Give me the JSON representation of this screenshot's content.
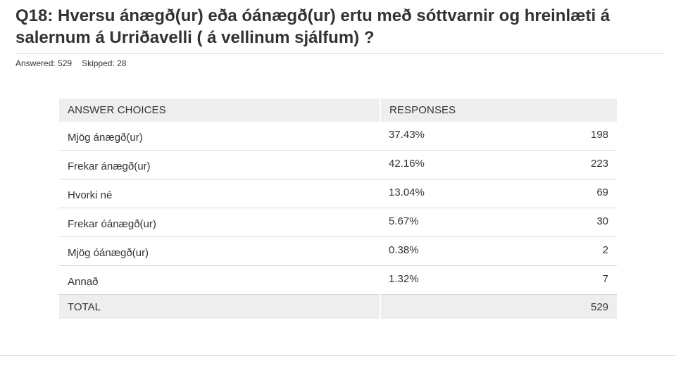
{
  "question": {
    "title": "Q18: Hversu ánægð(ur) eða óánægð(ur) ertu með sóttvarnir og hreinlæti á salernum á Urriðavelli ( á vellinum sjálfum) ?"
  },
  "stats": {
    "answered": "Answered: 529",
    "skipped": "Skipped: 28"
  },
  "table": {
    "headers": {
      "choices": "ANSWER CHOICES",
      "responses": "RESPONSES"
    },
    "rows": [
      {
        "choice": "Mjög ánægð(ur)",
        "percent": "37.43%",
        "count": "198"
      },
      {
        "choice": "Frekar ánægð(ur)",
        "percent": "42.16%",
        "count": "223"
      },
      {
        "choice": "Hvorki né",
        "percent": "13.04%",
        "count": "69"
      },
      {
        "choice": "Frekar óánægð(ur)",
        "percent": "5.67%",
        "count": "30"
      },
      {
        "choice": "Mjög óánægð(ur)",
        "percent": "0.38%",
        "count": "2"
      },
      {
        "choice": "Annað",
        "percent": "1.32%",
        "count": "7"
      }
    ],
    "total": {
      "label": "TOTAL",
      "count": "529"
    }
  },
  "colors": {
    "text": "#333333",
    "header_background": "#eeeeee",
    "row_divider": "#d9d9d9"
  }
}
